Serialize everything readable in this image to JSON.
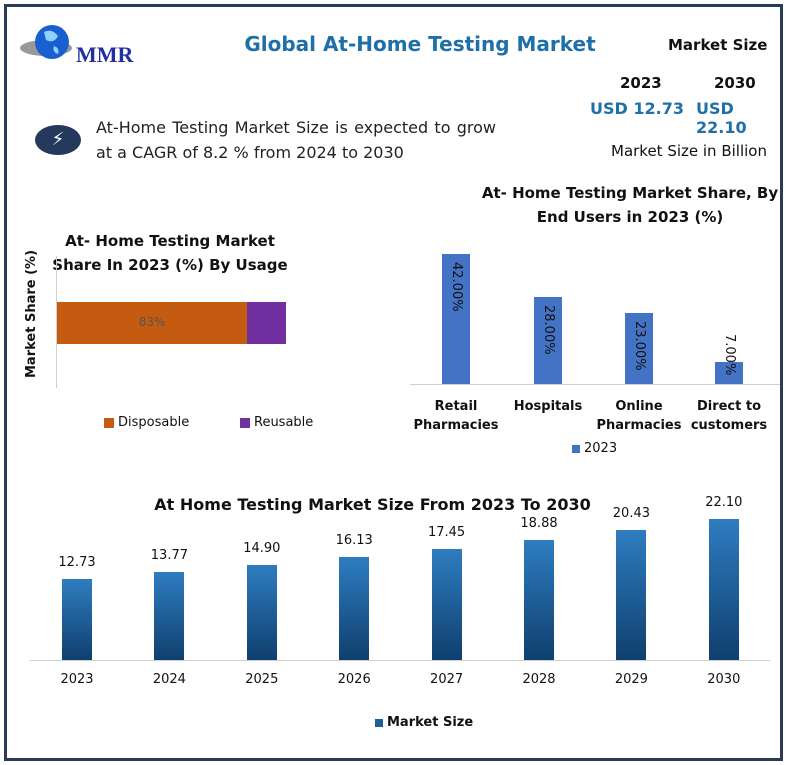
{
  "header": {
    "title": "Global At-Home Testing Market",
    "logo_text": "MMR",
    "market_size_label": "Market Size",
    "year_a": "2023",
    "value_a": "USD 12.73",
    "year_b": "2030",
    "value_b": "USD 22.10",
    "unit_note": "Market Size in Billion"
  },
  "cagr_text": "At-Home Testing Market Size is expected to grow at a CAGR of 8.2 % from 2024 to 2030",
  "icons": {
    "cagr": "lightning-bolt-icon",
    "logo": "globe-icon"
  },
  "chart_data": [
    {
      "type": "bar",
      "orientation": "horizontal",
      "stacked": true,
      "title": "At- Home Testing Market Share In 2023 (%) By Usage",
      "ylabel": "Market Share (%)",
      "xlim": [
        0,
        100
      ],
      "series": [
        {
          "name": "Disposable",
          "values": [
            83
          ],
          "label": "83%",
          "color": "#c55a11"
        },
        {
          "name": "Reusable",
          "values": [
            17
          ],
          "color": "#7030a0"
        }
      ],
      "legend": "bottom"
    },
    {
      "type": "bar",
      "title": "At- Home Testing Market Share, By End Users in 2023 (%)",
      "categories": [
        "Retail Pharmacies",
        "Hospitals",
        "Online Pharmacies",
        "Direct to customers"
      ],
      "series": [
        {
          "name": "2023",
          "values": [
            42,
            28,
            23,
            7
          ],
          "labels": [
            "42.00%",
            "28.00%",
            "23.00%",
            "7.00%"
          ],
          "color": "#4472c4"
        }
      ],
      "legend": "bottom"
    },
    {
      "type": "bar",
      "title": "At Home Testing Market Size From 2023 To 2030",
      "categories": [
        "2023",
        "2024",
        "2025",
        "2026",
        "2027",
        "2028",
        "2029",
        "2030"
      ],
      "series": [
        {
          "name": "Market Size",
          "values": [
            12.73,
            13.77,
            14.9,
            16.13,
            17.45,
            18.88,
            20.43,
            22.1
          ],
          "labels": [
            "12.73",
            "13.77",
            "14.90",
            "16.13",
            "17.45",
            "18.88",
            "20.43",
            "22.10"
          ],
          "color": "#1f5f94"
        }
      ],
      "legend": "bottom"
    }
  ]
}
